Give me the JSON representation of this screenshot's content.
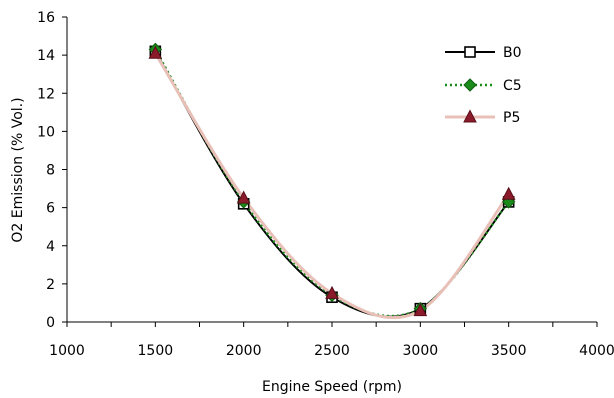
{
  "chart_data": {
    "type": "line",
    "xlabel": "Engine Speed (rpm)",
    "ylabel": "O2 Emission (% Vol.)",
    "xlim": [
      1000,
      4000
    ],
    "ylim": [
      0,
      16
    ],
    "x_ticks": [
      1000,
      1500,
      2000,
      2500,
      3000,
      3500,
      4000
    ],
    "y_ticks": [
      0,
      2,
      4,
      6,
      8,
      10,
      12,
      14,
      16
    ],
    "x_minor_step": 250,
    "grid": false,
    "legend_position": "top-right",
    "x": [
      1500,
      2000,
      2500,
      3000,
      3500
    ],
    "series": [
      {
        "name": "B0",
        "values": [
          14.2,
          6.2,
          1.3,
          0.7,
          6.3
        ],
        "color": "#000000",
        "marker": "square",
        "line_style": "solid"
      },
      {
        "name": "C5",
        "values": [
          14.3,
          6.3,
          1.4,
          0.7,
          6.3
        ],
        "color": "#1a8a1a",
        "marker": "diamond",
        "line_style": "dotted"
      },
      {
        "name": "P5",
        "values": [
          14.1,
          6.5,
          1.5,
          0.6,
          6.7
        ],
        "color": "#e8c0b8",
        "marker": "triangle",
        "line_style": "solid",
        "marker_color": "#8b1a2b"
      }
    ]
  }
}
